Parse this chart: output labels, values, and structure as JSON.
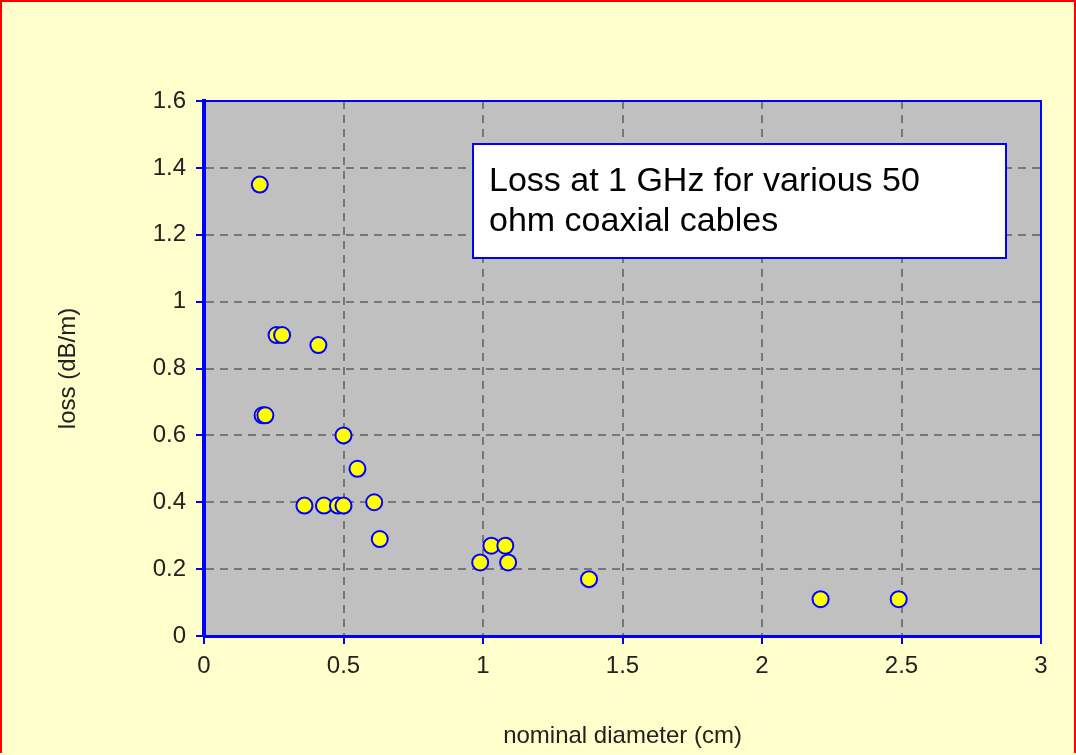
{
  "chart_data": {
    "type": "scatter",
    "title": "Loss at 1 GHz for various 50 ohm coaxial cables",
    "xlabel": "nominal diameter (cm)",
    "ylabel": "loss (dB/m)",
    "xlim": [
      0,
      3
    ],
    "xticks": [
      0,
      0.5,
      1,
      1.5,
      2,
      2.5,
      3
    ],
    "ylim": [
      0,
      1.6
    ],
    "yticks": [
      0,
      0.2,
      0.4,
      0.6,
      0.8,
      1,
      1.2,
      1.4,
      1.6
    ],
    "grid": true,
    "marker": "circle",
    "series": [
      {
        "color": "#ffff00",
        "x": [
          0.2,
          0.26,
          0.28,
          0.41,
          0.21,
          0.22,
          0.5,
          0.55,
          0.36,
          0.43,
          0.48,
          0.5,
          0.61,
          0.63,
          0.99,
          1.03,
          1.08,
          1.09,
          1.38,
          2.21,
          2.49
        ],
        "values": [
          1.35,
          0.9,
          0.9,
          0.87,
          0.66,
          0.66,
          0.6,
          0.5,
          0.39,
          0.39,
          0.39,
          0.39,
          0.4,
          0.29,
          0.22,
          0.27,
          0.27,
          0.22,
          0.17,
          0.11,
          0.11
        ]
      }
    ]
  }
}
